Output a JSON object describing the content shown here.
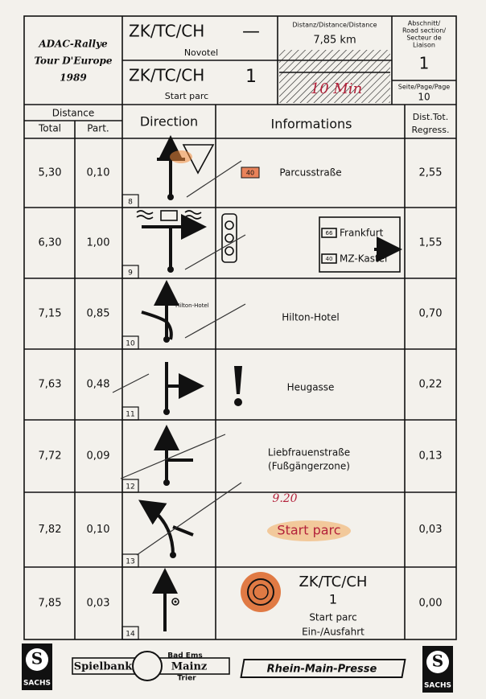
{
  "header": {
    "rally": [
      "ADAC-Rallye",
      "Tour D'Europe",
      "1989"
    ],
    "control_top": "ZK/TC/CH",
    "dash": "—",
    "location_top": "Novotel",
    "distance_label": "Distanz/Distance/Distance",
    "distance": "7,85 km",
    "handwritten_time": "10 Min",
    "section_label": [
      "Abschnitt/",
      "Road section/",
      "Secteur de",
      "Liaison"
    ],
    "section": "1",
    "control_bottom": "ZK/TC/CH",
    "control_number": "1",
    "location_bottom": "Start parc",
    "page_label": "Seite/Page/Page",
    "page": "10"
  },
  "columns": {
    "distance": "Distance",
    "total": "Total",
    "part": "Part.",
    "direction": "Direction",
    "informations": "Informations",
    "regress": [
      "Dist.Tot.",
      "Regress."
    ]
  },
  "rows": [
    {
      "total": "5,30",
      "part": "0,10",
      "number": "8",
      "info": {
        "sign": "40",
        "text": "Parcusstraße"
      },
      "regress": "2,55"
    },
    {
      "total": "6,30",
      "part": "1,00",
      "number": "9",
      "info": {
        "signs": [
          {
            "number": "66",
            "text": "Frankfurt"
          },
          {
            "number": "40",
            "text": "MZ-Kastel"
          }
        ]
      },
      "regress": "1,55"
    },
    {
      "total": "7,15",
      "part": "0,85",
      "number": "10",
      "direction_label": "Hilton-Hotel",
      "info": {
        "text": "Hilton-Hotel"
      },
      "regress": "0,70"
    },
    {
      "total": "7,63",
      "part": "0,48",
      "number": "11",
      "info": {
        "text": "Heugasse"
      },
      "regress": "0,22"
    },
    {
      "total": "7,72",
      "part": "0,09",
      "number": "12",
      "info": {
        "lines": [
          "Liebfrauenstraße",
          "(Fußgängerzone)"
        ]
      },
      "regress": "0,13"
    },
    {
      "total": "7,82",
      "part": "0,10",
      "number": "13",
      "info": {
        "handwritten": "9.20",
        "text": "Start parc"
      },
      "regress": "0,03"
    },
    {
      "total": "7,85",
      "part": "0,03",
      "number": "14",
      "info": {
        "lines": [
          "ZK/TC/CH",
          "1",
          "Start parc",
          "Ein-/Ausfahrt"
        ]
      },
      "regress": "0,00"
    }
  ],
  "footer": {
    "sponsor_left": "SACHS",
    "casino": "Spielbank",
    "casino_places": [
      "Bad Ems",
      "Mainz",
      "Trier"
    ],
    "newspaper": "Rhein-Main-Presse",
    "sponsor_right": "SACHS"
  }
}
